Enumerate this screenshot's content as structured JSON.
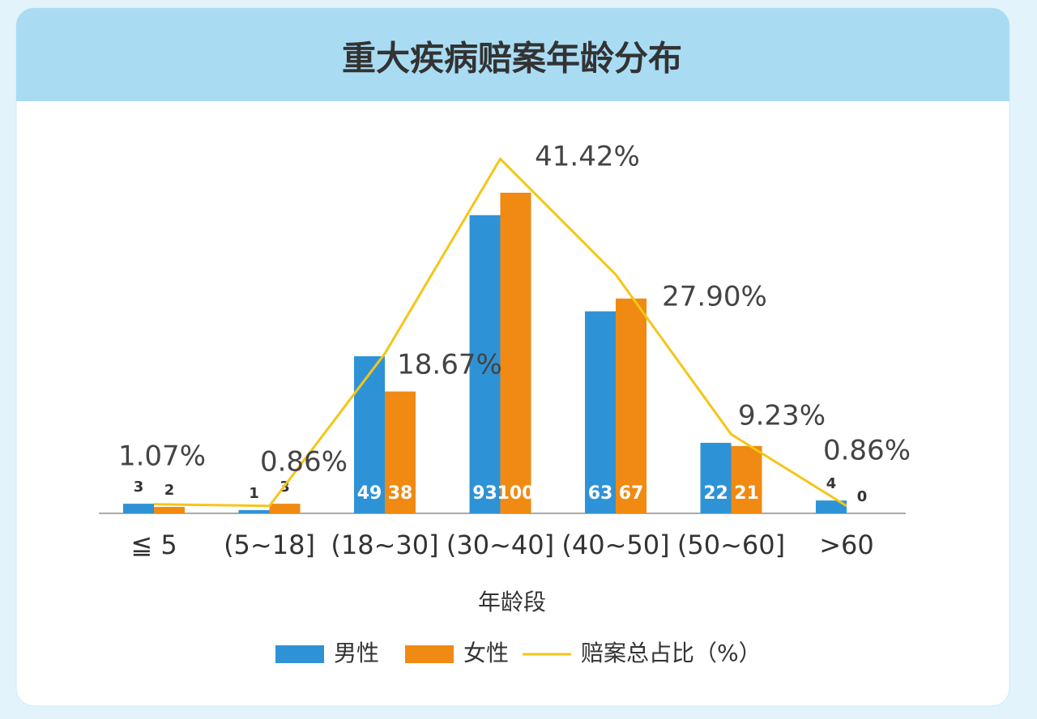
{
  "chart_data": {
    "type": "bar-line",
    "title": "重大疾病赔案年龄分布",
    "x_label": "年龄段",
    "categories": [
      "≦ 5",
      "(5~18]",
      "(18~30]",
      "(30~40]",
      "(40~50]",
      "(50~60]",
      ">60"
    ],
    "series": [
      {
        "name": "男性",
        "type": "bar",
        "color": "#2e93d6",
        "values": [
          3,
          1,
          49,
          93,
          63,
          22,
          4
        ]
      },
      {
        "name": "女性",
        "type": "bar",
        "color": "#f08a12",
        "values": [
          2,
          3,
          38,
          100,
          67,
          21,
          0
        ]
      },
      {
        "name": "赔案总占比（%）",
        "type": "line",
        "color": "#f5c518",
        "axis": "y2",
        "values": [
          1.07,
          0.86,
          18.67,
          41.42,
          27.9,
          9.23,
          0.86
        ],
        "value_labels": [
          "1.07%",
          "0.86%",
          "18.67%",
          "41.42%",
          "27.90%",
          "9.23%",
          "0.86%"
        ]
      }
    ]
  }
}
